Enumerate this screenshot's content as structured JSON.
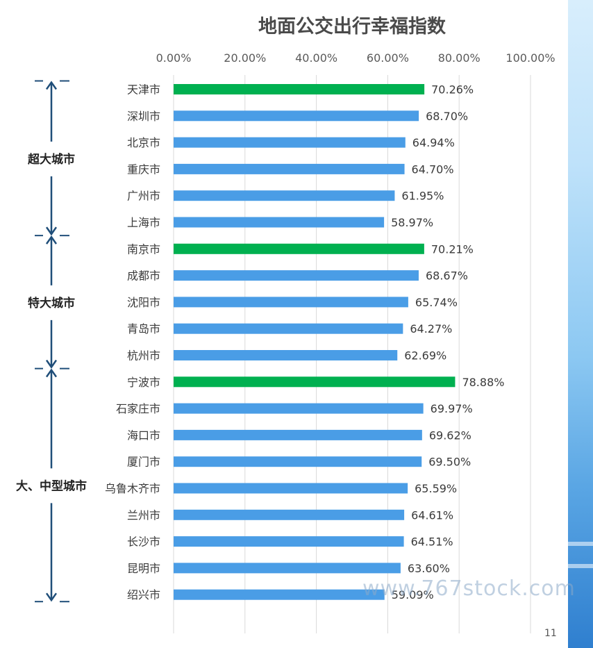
{
  "chart_data": {
    "type": "bar",
    "orientation": "horizontal",
    "title": "地面公交出行幸福指数",
    "xlim": [
      0,
      100
    ],
    "x_ticks": [
      "0.00%",
      "20.00%",
      "40.00%",
      "60.00%",
      "80.00%",
      "100.00%"
    ],
    "grid": true,
    "categories": [
      "天津市",
      "深圳市",
      "北京市",
      "重庆市",
      "广州市",
      "上海市",
      "南京市",
      "成都市",
      "沈阳市",
      "青岛市",
      "杭州市",
      "宁波市",
      "石家庄市",
      "海口市",
      "厦门市",
      "乌鲁木齐市",
      "兰州市",
      "长沙市",
      "昆明市",
      "绍兴市"
    ],
    "values": [
      70.26,
      68.7,
      64.94,
      64.7,
      61.95,
      58.97,
      70.21,
      68.67,
      65.74,
      64.27,
      62.69,
      78.88,
      69.97,
      69.62,
      69.5,
      65.59,
      64.61,
      64.51,
      63.6,
      59.09
    ],
    "value_labels": [
      "70.26%",
      "68.70%",
      "64.94%",
      "64.70%",
      "61.95%",
      "58.97%",
      "70.21%",
      "68.67%",
      "65.74%",
      "64.27%",
      "62.69%",
      "78.88%",
      "69.97%",
      "69.62%",
      "69.50%",
      "65.59%",
      "64.61%",
      "64.51%",
      "63.60%",
      "59.09%"
    ],
    "highlighted": [
      0,
      6,
      11
    ],
    "groups": [
      {
        "label": "超大城市",
        "start": 0,
        "end": 5
      },
      {
        "label": "特大城市",
        "start": 6,
        "end": 10
      },
      {
        "label": "大、中型城市",
        "start": 11,
        "end": 19
      }
    ],
    "colors": {
      "default": "#4a9de6",
      "highlight": "#00b050",
      "grid": "#d9d9d9",
      "bracket": "#1f4e79"
    }
  },
  "watermark": "www.767stock.com",
  "page_number": "11"
}
